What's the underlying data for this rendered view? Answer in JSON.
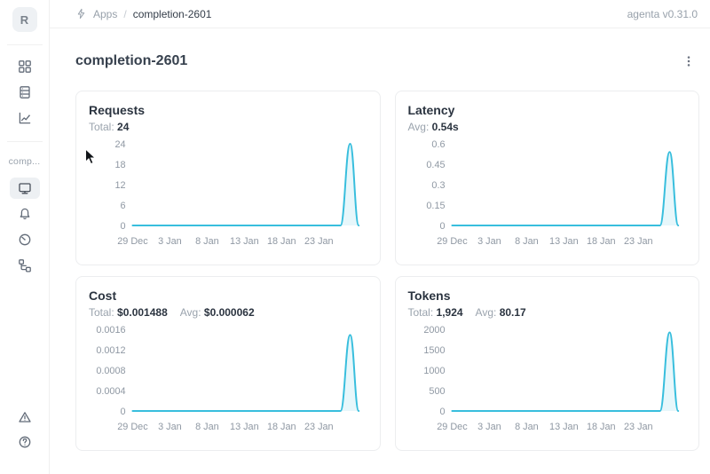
{
  "header": {
    "breadcrumb": {
      "icon": "bolt-icon",
      "app_section": "Apps",
      "separator": "/",
      "current_page": "completion-2601"
    },
    "version_label": "agenta v0.31.0"
  },
  "sidebar": {
    "workspace_initial": "R",
    "project_label": "comp...",
    "nav_icons": [
      "apps-grid-icon",
      "datasets-table-icon",
      "evaluations-chart-icon"
    ],
    "project_icons": [
      "overview-monitor-icon",
      "playground-bell-icon",
      "observability-gauge-icon",
      "traces-tree-icon"
    ],
    "footer_icons": [
      "alert-triangle-icon",
      "help-circle-icon"
    ],
    "selected_item": "overview-monitor-icon"
  },
  "page": {
    "title": "completion-2601"
  },
  "colors": {
    "accent_line": "#38bedd",
    "accent_fill": "rgba(56,190,221,0.12)",
    "axis_label": "#8f98a3",
    "card_border": "#ecedef"
  },
  "cards": [
    {
      "title": "Requests",
      "stats": [
        {
          "label": "Total:",
          "value": "24"
        }
      ]
    },
    {
      "title": "Latency",
      "stats": [
        {
          "label": "Avg:",
          "value": "0.54s"
        }
      ]
    },
    {
      "title": "Cost",
      "stats": [
        {
          "label": "Total:",
          "value": "$0.001488"
        },
        {
          "label": "Avg:",
          "value": "$0.000062"
        }
      ]
    },
    {
      "title": "Tokens",
      "stats": [
        {
          "label": "Total:",
          "value": "1,924"
        },
        {
          "label": "Avg:",
          "value": "80.17"
        }
      ]
    }
  ],
  "chart_data": [
    {
      "type": "line",
      "title": "Requests",
      "summary": {
        "total": 24
      },
      "x_tick_labels": [
        "29 Dec",
        "3 Jan",
        "8 Jan",
        "13 Jan",
        "18 Jan",
        "23 Jan"
      ],
      "x_tick_days": [
        0,
        5,
        10,
        15,
        20,
        25
      ],
      "xlim_days": [
        0,
        30.4
      ],
      "yticks": [
        0,
        6,
        12,
        18,
        24
      ],
      "ylim": [
        0,
        24
      ],
      "grid": false,
      "legend": false,
      "series": [
        {
          "name": "Requests",
          "baseline_value": 0,
          "spike": {
            "rise_start_day": 27.9,
            "peak_day": 29.2,
            "fall_end_day": 30.35,
            "peak_value": 24
          }
        }
      ]
    },
    {
      "type": "line",
      "title": "Latency",
      "summary": {
        "avg_seconds": 0.54
      },
      "x_tick_labels": [
        "29 Dec",
        "3 Jan",
        "8 Jan",
        "13 Jan",
        "18 Jan",
        "23 Jan"
      ],
      "x_tick_days": [
        0,
        5,
        10,
        15,
        20,
        25
      ],
      "xlim_days": [
        0,
        30.4
      ],
      "yticks": [
        0,
        0.15,
        0.3,
        0.45,
        0.6
      ],
      "ylim": [
        0,
        0.6
      ],
      "grid": false,
      "legend": false,
      "series": [
        {
          "name": "Latency (s)",
          "baseline_value": 0,
          "spike": {
            "rise_start_day": 27.9,
            "peak_day": 29.2,
            "fall_end_day": 30.35,
            "peak_value": 0.54
          }
        }
      ]
    },
    {
      "type": "line",
      "title": "Cost",
      "summary": {
        "total_usd": 0.001488,
        "avg_usd": 6.2e-05
      },
      "x_tick_labels": [
        "29 Dec",
        "3 Jan",
        "8 Jan",
        "13 Jan",
        "18 Jan",
        "23 Jan"
      ],
      "x_tick_days": [
        0,
        5,
        10,
        15,
        20,
        25
      ],
      "xlim_days": [
        0,
        30.4
      ],
      "yticks": [
        0,
        0.0004,
        0.0008,
        0.0012,
        0.0016
      ],
      "ylim": [
        0,
        0.0016
      ],
      "grid": false,
      "legend": false,
      "series": [
        {
          "name": "Cost ($)",
          "baseline_value": 0,
          "spike": {
            "rise_start_day": 27.9,
            "peak_day": 29.2,
            "fall_end_day": 30.35,
            "peak_value": 0.001488
          }
        }
      ]
    },
    {
      "type": "line",
      "title": "Tokens",
      "summary": {
        "total": 1924,
        "avg": 80.17
      },
      "x_tick_labels": [
        "29 Dec",
        "3 Jan",
        "8 Jan",
        "13 Jan",
        "18 Jan",
        "23 Jan"
      ],
      "x_tick_days": [
        0,
        5,
        10,
        15,
        20,
        25
      ],
      "xlim_days": [
        0,
        30.4
      ],
      "yticks": [
        0,
        500,
        1000,
        1500,
        2000
      ],
      "ylim": [
        0,
        2000
      ],
      "grid": false,
      "legend": false,
      "series": [
        {
          "name": "Tokens",
          "baseline_value": 0,
          "spike": {
            "rise_start_day": 27.9,
            "peak_day": 29.2,
            "fall_end_day": 30.35,
            "peak_value": 1924
          }
        }
      ]
    }
  ]
}
